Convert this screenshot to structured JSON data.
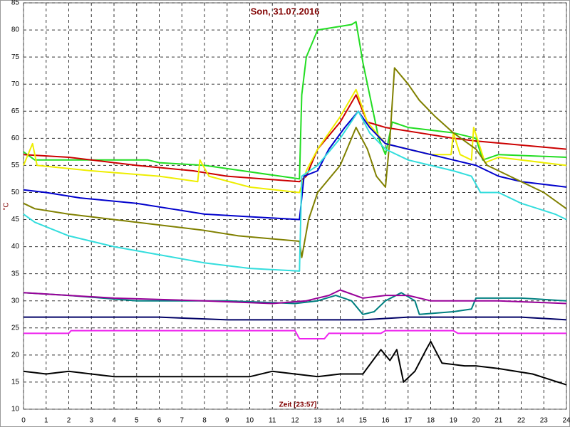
{
  "chart_data": {
    "type": "line",
    "title": "Son, 31.07.2016",
    "x_label": "Zeit [23:57]",
    "y_label": "°C",
    "xlim": [
      0,
      24
    ],
    "xticks": [
      0,
      1,
      2,
      3,
      4,
      5,
      6,
      7,
      8,
      9,
      10,
      11,
      12,
      13,
      14,
      15,
      16,
      17,
      18,
      19,
      20,
      21,
      22,
      23,
      24
    ],
    "ylim": [
      10,
      85
    ],
    "yticks": [
      10,
      15,
      20,
      25,
      30,
      35,
      40,
      45,
      50,
      55,
      60,
      65,
      70,
      75,
      80,
      85
    ],
    "grid": true,
    "series": [
      {
        "color": "#22dd22",
        "x": [
          0,
          0.5,
          5.5,
          6,
          8,
          12.2,
          12.3,
          12.5,
          13,
          14.5,
          14.7,
          15,
          15.7,
          16,
          16.3,
          17,
          18,
          19,
          20,
          20.3,
          21,
          24
        ],
        "values": [
          57.5,
          56,
          56,
          55.5,
          55,
          52.5,
          68,
          75,
          80,
          81,
          81.5,
          74,
          60,
          57,
          63,
          62,
          61.5,
          61,
          60,
          56,
          57,
          56.5
        ]
      },
      {
        "color": "#cc0000",
        "x": [
          0,
          2,
          5,
          7.5,
          9,
          12.2,
          12.5,
          13,
          14,
          14.7,
          15.2,
          16,
          17.5,
          19,
          20,
          24
        ],
        "values": [
          57,
          56.5,
          55,
          54,
          53,
          52,
          53,
          58,
          63,
          68,
          63,
          62,
          61,
          60,
          59.5,
          58
        ]
      },
      {
        "color": "#eeee00",
        "x": [
          0,
          0.4,
          0.6,
          3,
          6,
          7.7,
          7.8,
          8.2,
          10,
          12.2,
          12.5,
          13,
          14,
          14.7,
          15.2,
          16,
          17,
          18,
          18.9,
          19,
          19.3,
          19.8,
          19.9,
          20.4,
          21,
          24
        ],
        "values": [
          55,
          59,
          55,
          54,
          53,
          52,
          56,
          53,
          51,
          50,
          54,
          58,
          64,
          69,
          63,
          59,
          58,
          57,
          57,
          61,
          57,
          56,
          62,
          55.5,
          56.5,
          55
        ]
      },
      {
        "color": "#0000cc",
        "x": [
          0,
          1,
          2.5,
          5,
          6.5,
          8,
          12.2,
          12.4,
          13,
          13.5,
          14.2,
          14.8,
          15.3,
          16,
          17,
          18,
          19,
          20,
          21,
          22,
          24
        ],
        "values": [
          50.5,
          50,
          49,
          48,
          47,
          46,
          45,
          53,
          54,
          58,
          62,
          65,
          62,
          59,
          58,
          57,
          56,
          55,
          53,
          52,
          51
        ]
      },
      {
        "color": "#808000",
        "x": [
          0,
          0.5,
          2,
          4,
          6,
          8,
          9.5,
          12.2,
          12.3,
          12.6,
          13,
          14,
          14.7,
          15.2,
          15.6,
          16,
          16.2,
          16.4,
          17,
          17.5,
          18.2,
          19,
          20,
          20.5,
          21.5,
          23,
          24
        ],
        "values": [
          48,
          47,
          46,
          45,
          44,
          43,
          42,
          41,
          38,
          45,
          50,
          55,
          62,
          58,
          53,
          51,
          60,
          73,
          70,
          67,
          64,
          61,
          58,
          55,
          53,
          50,
          47
        ]
      },
      {
        "color": "#33dddd",
        "x": [
          0,
          0.5,
          2,
          4,
          6,
          8,
          10,
          12.2,
          12.3,
          13,
          14,
          14.8,
          15.3,
          16,
          17,
          18,
          19,
          19.8,
          20.2,
          21,
          22,
          23.5,
          24
        ],
        "values": [
          46,
          44.5,
          42,
          40,
          38.5,
          37,
          36,
          35.5,
          53,
          55,
          60,
          65,
          61,
          58,
          56,
          55,
          54,
          53,
          50,
          50,
          48,
          46,
          45
        ]
      },
      {
        "color": "#008080",
        "x": [
          0,
          2,
          5,
          9,
          12,
          13,
          13.8,
          14.5,
          15,
          15.5,
          16,
          16.7,
          17.3,
          17.5,
          19,
          19.8,
          20,
          22,
          24
        ],
        "values": [
          31.5,
          31,
          30,
          30,
          29.5,
          30,
          31,
          30,
          27.5,
          28,
          30,
          31.5,
          30,
          27.5,
          28,
          28.5,
          30.5,
          30.5,
          30
        ]
      },
      {
        "color": "#990099",
        "x": [
          0,
          4,
          8,
          11,
          12.5,
          13.5,
          14,
          15,
          16,
          17,
          18,
          21,
          24
        ],
        "values": [
          31.5,
          30.5,
          30,
          29.5,
          30,
          31,
          32,
          30.5,
          31,
          31,
          30,
          30,
          29.5
        ]
      },
      {
        "color": "#000066",
        "x": [
          0,
          6,
          9,
          15,
          17,
          22,
          24
        ],
        "values": [
          27,
          27,
          26.5,
          26.5,
          27,
          27,
          26.5
        ]
      },
      {
        "color": "#ee22ee",
        "x": [
          0,
          2,
          2.1,
          12,
          12.2,
          13.3,
          13.5,
          15.8,
          16,
          19,
          19.2,
          24
        ],
        "values": [
          24,
          24,
          24.5,
          24.5,
          23,
          23,
          24,
          24,
          24.5,
          24.5,
          24,
          24
        ]
      },
      {
        "color": "#000000",
        "x": [
          0,
          1,
          2,
          4,
          6,
          8,
          10,
          11,
          12,
          13,
          14,
          15,
          15.8,
          16.2,
          16.5,
          16.8,
          17.3,
          17.8,
          18,
          18.5,
          19.5,
          20,
          21,
          22.5,
          24
        ],
        "values": [
          17,
          16.5,
          17,
          16,
          16,
          16,
          16,
          17,
          16.5,
          16,
          16.5,
          16.5,
          21,
          19,
          21,
          15,
          17,
          21,
          22.5,
          18.5,
          18,
          18,
          17.5,
          16.5,
          14.5
        ]
      }
    ]
  }
}
